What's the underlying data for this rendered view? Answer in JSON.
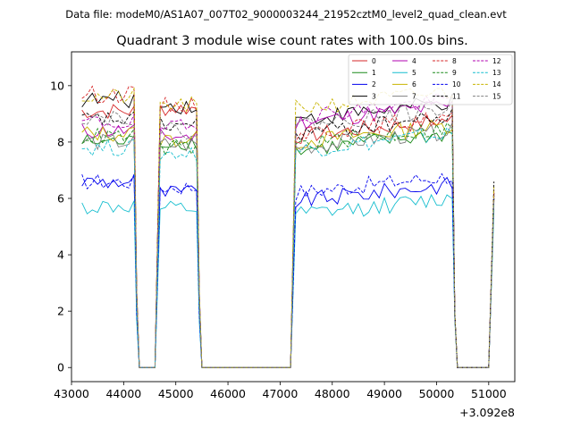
{
  "chart_data": {
    "type": "line",
    "suptitle": "Data file: modeM0/AS1A07_007T02_9000003244_21952cztM0_level2_quad_clean.evt",
    "title": "Quadrant 3 module wise count rates with 100.0s bins.",
    "xlabel": "",
    "ylabel": "",
    "x_offset_label": "+3.092e8",
    "xlim": [
      43000,
      51500
    ],
    "ylim": [
      -0.5,
      11.2
    ],
    "xticks": [
      43000,
      44000,
      45000,
      46000,
      47000,
      48000,
      49000,
      50000,
      51000
    ],
    "yticks": [
      0,
      2,
      4,
      6,
      8,
      10
    ],
    "xtick_labels": [
      "43000",
      "44000",
      "45000",
      "46000",
      "47000",
      "48000",
      "49000",
      "50000",
      "51000"
    ],
    "ytick_labels": [
      "0",
      "2",
      "4",
      "6",
      "8",
      "10"
    ],
    "legend_position": "top-right",
    "legend_columns": 4,
    "segments": [
      {
        "x_start": 43200,
        "x_end": 44200
      },
      {
        "x_start": 44700,
        "x_end": 45400
      },
      {
        "x_start": 47300,
        "x_end": 50300
      },
      {
        "x_start": 51100,
        "x_end": 51100
      }
    ],
    "series": [
      {
        "name": "0",
        "color": "#d62728",
        "style": "solid",
        "levels": [
          9.1,
          9.2,
          8.2,
          6.2
        ]
      },
      {
        "name": "1",
        "color": "#1a8a1a",
        "style": "solid",
        "levels": [
          8.0,
          8.0,
          7.7,
          6.0
        ]
      },
      {
        "name": "2",
        "color": "#0000ee",
        "style": "solid",
        "levels": [
          6.6,
          6.2,
          5.9,
          6.0
        ]
      },
      {
        "name": "3",
        "color": "#000000",
        "style": "solid",
        "levels": [
          9.5,
          9.3,
          8.8,
          6.2
        ]
      },
      {
        "name": "4",
        "color": "#b000b0",
        "style": "solid",
        "levels": [
          8.4,
          8.2,
          8.7,
          6.1
        ]
      },
      {
        "name": "5",
        "color": "#17becf",
        "style": "solid",
        "levels": [
          5.7,
          5.6,
          5.4,
          5.6
        ]
      },
      {
        "name": "6",
        "color": "#c8b400",
        "style": "solid",
        "levels": [
          8.3,
          8.1,
          8.0,
          6.0
        ]
      },
      {
        "name": "7",
        "color": "#808080",
        "style": "solid",
        "levels": [
          8.0,
          7.9,
          7.8,
          5.9
        ]
      },
      {
        "name": "8",
        "color": "#d62728",
        "style": "dashed",
        "levels": [
          9.7,
          9.3,
          8.3,
          6.3
        ]
      },
      {
        "name": "9",
        "color": "#1a8a1a",
        "style": "dashed",
        "levels": [
          8.2,
          7.8,
          7.9,
          6.1
        ]
      },
      {
        "name": "10",
        "color": "#0000ee",
        "style": "dashed",
        "levels": [
          6.6,
          6.4,
          6.2,
          6.1
        ]
      },
      {
        "name": "11",
        "color": "#000000",
        "style": "dashed",
        "levels": [
          8.8,
          8.6,
          8.3,
          6.6
        ]
      },
      {
        "name": "12",
        "color": "#b000b0",
        "style": "dashed",
        "levels": [
          8.7,
          8.5,
          8.9,
          6.2
        ]
      },
      {
        "name": "13",
        "color": "#17becf",
        "style": "dashed",
        "levels": [
          7.8,
          7.6,
          7.7,
          5.8
        ]
      },
      {
        "name": "14",
        "color": "#c8b400",
        "style": "dashed",
        "levels": [
          9.6,
          9.3,
          9.2,
          6.4
        ]
      },
      {
        "name": "15",
        "color": "#808080",
        "style": "dashed",
        "levels": [
          8.9,
          8.4,
          8.6,
          6.0
        ]
      }
    ]
  }
}
